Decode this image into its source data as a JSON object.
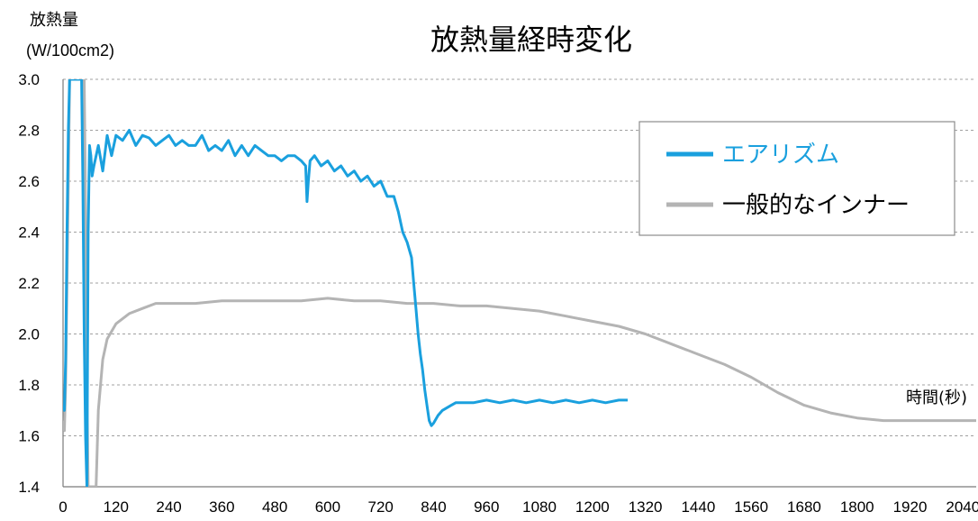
{
  "chart_data": {
    "type": "line",
    "title": "放熱量経時変化",
    "ylabel": "放熱量",
    "ylabel_unit": "(W/100cm2)",
    "xlabel": "時間(秒)",
    "xlim": [
      0,
      2070
    ],
    "ylim": [
      1.4,
      3.0
    ],
    "x_ticks": [
      "0",
      "120",
      "240",
      "360",
      "480",
      "600",
      "720",
      "840",
      "960",
      "1080",
      "1200",
      "1320",
      "1440",
      "1560",
      "1680",
      "1800",
      "1920",
      "2040"
    ],
    "y_ticks": [
      "3.0",
      "2.8",
      "2.6",
      "2.4",
      "2.2",
      "2.0",
      "1.8",
      "1.6",
      "1.4"
    ],
    "grid": true,
    "legend_position": "top-right",
    "series": [
      {
        "name": "エアリズム",
        "color": "#1aa0de",
        "x": [
          0,
          3,
          6,
          9,
          12,
          15,
          18,
          21,
          24,
          27,
          30,
          33,
          36,
          39,
          42,
          45,
          48,
          51,
          54,
          57,
          60,
          63,
          66,
          70,
          80,
          90,
          100,
          110,
          120,
          135,
          150,
          165,
          180,
          195,
          210,
          225,
          240,
          255,
          270,
          285,
          300,
          315,
          330,
          345,
          360,
          375,
          390,
          405,
          420,
          435,
          450,
          465,
          480,
          495,
          510,
          525,
          540,
          550,
          553,
          556,
          560,
          570,
          585,
          600,
          615,
          630,
          645,
          660,
          675,
          690,
          705,
          720,
          735,
          750,
          760,
          770,
          780,
          790,
          795,
          800,
          805,
          810,
          815,
          820,
          825,
          830,
          835,
          840,
          850,
          860,
          870,
          880,
          890,
          900,
          930,
          960,
          990,
          1020,
          1050,
          1080,
          1110,
          1140,
          1170,
          1200,
          1230,
          1260,
          1280
        ],
        "y": [
          1.72,
          1.7,
          1.9,
          2.4,
          2.8,
          3.0,
          3.0,
          3.0,
          3.0,
          3.0,
          3.0,
          3.0,
          3.0,
          3.0,
          3.0,
          2.6,
          2.0,
          1.6,
          1.4,
          2.4,
          2.74,
          2.7,
          2.62,
          2.66,
          2.74,
          2.64,
          2.78,
          2.7,
          2.78,
          2.76,
          2.8,
          2.74,
          2.78,
          2.77,
          2.74,
          2.76,
          2.78,
          2.74,
          2.76,
          2.74,
          2.74,
          2.78,
          2.72,
          2.74,
          2.72,
          2.76,
          2.7,
          2.74,
          2.7,
          2.74,
          2.72,
          2.7,
          2.7,
          2.68,
          2.7,
          2.7,
          2.68,
          2.66,
          2.52,
          2.6,
          2.68,
          2.7,
          2.66,
          2.68,
          2.64,
          2.66,
          2.62,
          2.64,
          2.6,
          2.62,
          2.58,
          2.6,
          2.54,
          2.54,
          2.48,
          2.4,
          2.36,
          2.3,
          2.2,
          2.1,
          2.0,
          1.92,
          1.86,
          1.78,
          1.72,
          1.66,
          1.64,
          1.65,
          1.68,
          1.7,
          1.71,
          1.72,
          1.73,
          1.73,
          1.73,
          1.74,
          1.73,
          1.74,
          1.73,
          1.74,
          1.73,
          1.74,
          1.73,
          1.74,
          1.73,
          1.74,
          1.74
        ]
      },
      {
        "name": "一般的なインナー",
        "color": "#b4b4b4",
        "x": [
          0,
          3,
          6,
          9,
          12,
          15,
          18,
          21,
          24,
          27,
          30,
          33,
          36,
          39,
          42,
          45,
          48,
          51,
          54,
          57,
          60,
          63,
          66,
          70,
          75,
          80,
          90,
          100,
          120,
          150,
          180,
          210,
          240,
          270,
          300,
          360,
          420,
          480,
          540,
          600,
          660,
          720,
          780,
          840,
          900,
          960,
          1020,
          1080,
          1140,
          1200,
          1260,
          1320,
          1380,
          1440,
          1500,
          1560,
          1620,
          1680,
          1740,
          1800,
          1860,
          1920,
          1980,
          2040,
          2070
        ],
        "y": [
          1.66,
          1.62,
          1.8,
          2.2,
          2.6,
          3.0,
          3.0,
          3.0,
          3.0,
          3.0,
          3.0,
          3.0,
          3.0,
          3.0,
          3.0,
          3.0,
          3.0,
          2.5,
          1.8,
          1.4,
          1.4,
          1.4,
          1.4,
          1.4,
          1.4,
          1.7,
          1.9,
          1.98,
          2.04,
          2.08,
          2.1,
          2.12,
          2.12,
          2.12,
          2.12,
          2.13,
          2.13,
          2.13,
          2.13,
          2.14,
          2.13,
          2.13,
          2.12,
          2.12,
          2.11,
          2.11,
          2.1,
          2.09,
          2.07,
          2.05,
          2.03,
          2.0,
          1.96,
          1.92,
          1.88,
          1.83,
          1.77,
          1.72,
          1.69,
          1.67,
          1.66,
          1.66,
          1.66,
          1.66,
          1.66
        ]
      }
    ]
  }
}
